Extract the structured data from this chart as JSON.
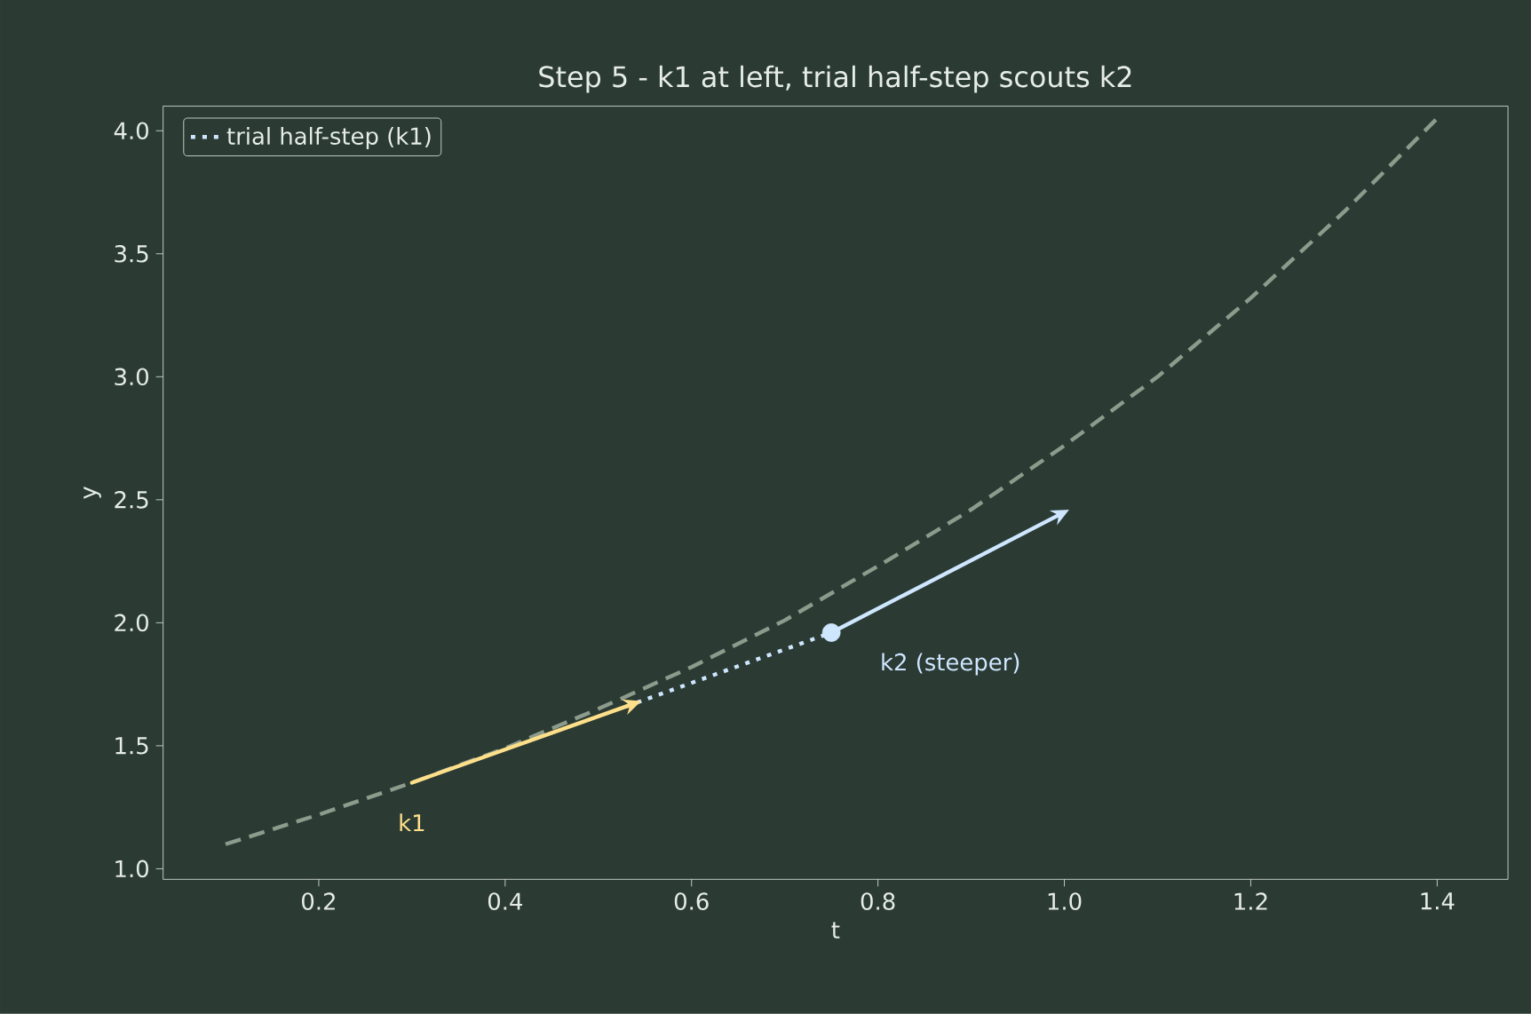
{
  "chart_data": {
    "type": "line",
    "title": "Step 5 - k1 at left, trial half-step scouts k2",
    "xlabel": "t",
    "ylabel": "y",
    "xlim": [
      0.033,
      1.476
    ],
    "ylim": [
      0.957,
      4.1
    ],
    "xticks": [
      0.2,
      0.4,
      0.6,
      0.8,
      {
        "value": 1,
        "label": "1.0"
      },
      1.2,
      1.4
    ],
    "yticks": [
      {
        "value": 1,
        "label": "1.0"
      },
      1.5,
      {
        "value": 2,
        "label": "2.0"
      },
      2.5,
      {
        "value": 3,
        "label": "3.0"
      },
      3.5,
      {
        "value": 4,
        "label": "4.0"
      }
    ],
    "grid": false,
    "legend": "top left",
    "series": [
      {
        "color": "#8d9b8c",
        "line_style": "dashed",
        "marker": "none",
        "x": [
          0.1,
          0.2,
          0.3,
          0.4,
          0.5,
          0.6,
          0.7,
          0.8,
          0.9,
          1.0,
          1.1,
          1.2,
          1.3,
          1.4
        ],
        "values": [
          1.1,
          1.22,
          1.35,
          1.49,
          1.65,
          1.82,
          2.01,
          2.23,
          2.46,
          2.72,
          3.0,
          3.32,
          3.67,
          4.05
        ]
      },
      {
        "name": "trial half-step (k1)",
        "color": "#cfe6ff",
        "line_style": "dotted",
        "marker": "none",
        "x": [
          0.53,
          0.75
        ],
        "values": [
          1.66,
          1.96
        ]
      },
      {
        "color": "#ffe08a",
        "line_style": "solid",
        "marker": "none",
        "x": [
          0.3,
          0.53
        ],
        "values": [
          1.35,
          1.66
        ]
      },
      {
        "color": "#cfe6ff",
        "line_style": "solid",
        "marker": "none",
        "x": [
          0.75,
          0.99
        ],
        "values": [
          1.96,
          2.43
        ]
      },
      {
        "type": "scatter",
        "color": "#cfe6ff",
        "marker": "circle",
        "x": [
          0.75
        ],
        "values": [
          1.96
        ]
      }
    ],
    "annotations": [
      {
        "text": "k1",
        "x": 0.3,
        "y": 1.35
      },
      {
        "text": "k2 (steeper)",
        "x": 0.75,
        "y": 1.96
      }
    ]
  }
}
